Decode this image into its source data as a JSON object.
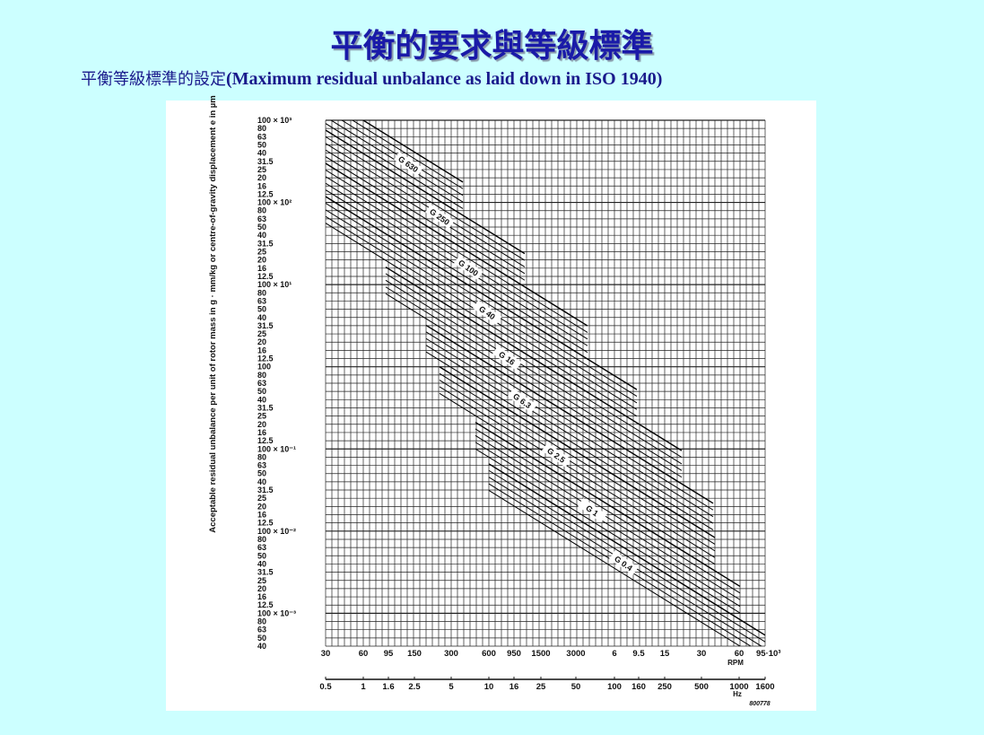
{
  "header": {
    "title": "平衡的要求與等級標準",
    "subtitle_zh": "平衡等級標準的設定",
    "subtitle_en": "(Maximum residual unbalance as laid down in ISO 1940)"
  },
  "figure": {
    "y_axis_label": "Acceptable residual unbalance per unit of rotor mass in g · mm/kg or centre-of-gravity displacement e in µm",
    "y_ticks": [
      "100 × 10³",
      "80",
      "63",
      "50",
      "40",
      "31.5",
      "25",
      "20",
      "16",
      "12.5",
      "100 × 10²",
      "80",
      "63",
      "50",
      "40",
      "31.5",
      "25",
      "20",
      "16",
      "12.5",
      "100 × 10¹",
      "80",
      "63",
      "50",
      "40",
      "31.5",
      "25",
      "20",
      "16",
      "12.5",
      "100",
      "80",
      "63",
      "50",
      "40",
      "31.5",
      "25",
      "20",
      "16",
      "12.5",
      "100 × 10⁻¹",
      "80",
      "63",
      "50",
      "40",
      "31.5",
      "25",
      "20",
      "16",
      "12.5",
      "100 × 10⁻²",
      "80",
      "63",
      "50",
      "40",
      "31.5",
      "25",
      "20",
      "16",
      "12.5",
      "100 × 10⁻³",
      "80",
      "63",
      "50",
      "40"
    ],
    "rpm_ticks": [
      "30",
      "60",
      "95",
      "150",
      "300",
      "600",
      "950",
      "1500",
      "3000",
      "6",
      "9.5",
      "15",
      "30",
      "60",
      "95·10³"
    ],
    "rpm_label": "RPM",
    "hz_ticks": [
      "0.5",
      "1",
      "1.6",
      "2.5",
      "5",
      "10",
      "16",
      "25",
      "50",
      "100",
      "160",
      "250",
      "500",
      "1000",
      "1600"
    ],
    "hz_label": "Hz",
    "grades": [
      "G 630",
      "G 250",
      "G 100",
      "G 40",
      "G 16",
      "G 6.3",
      "G 2.5",
      "G 1",
      "G 0.4"
    ],
    "figure_id": "800778"
  }
}
